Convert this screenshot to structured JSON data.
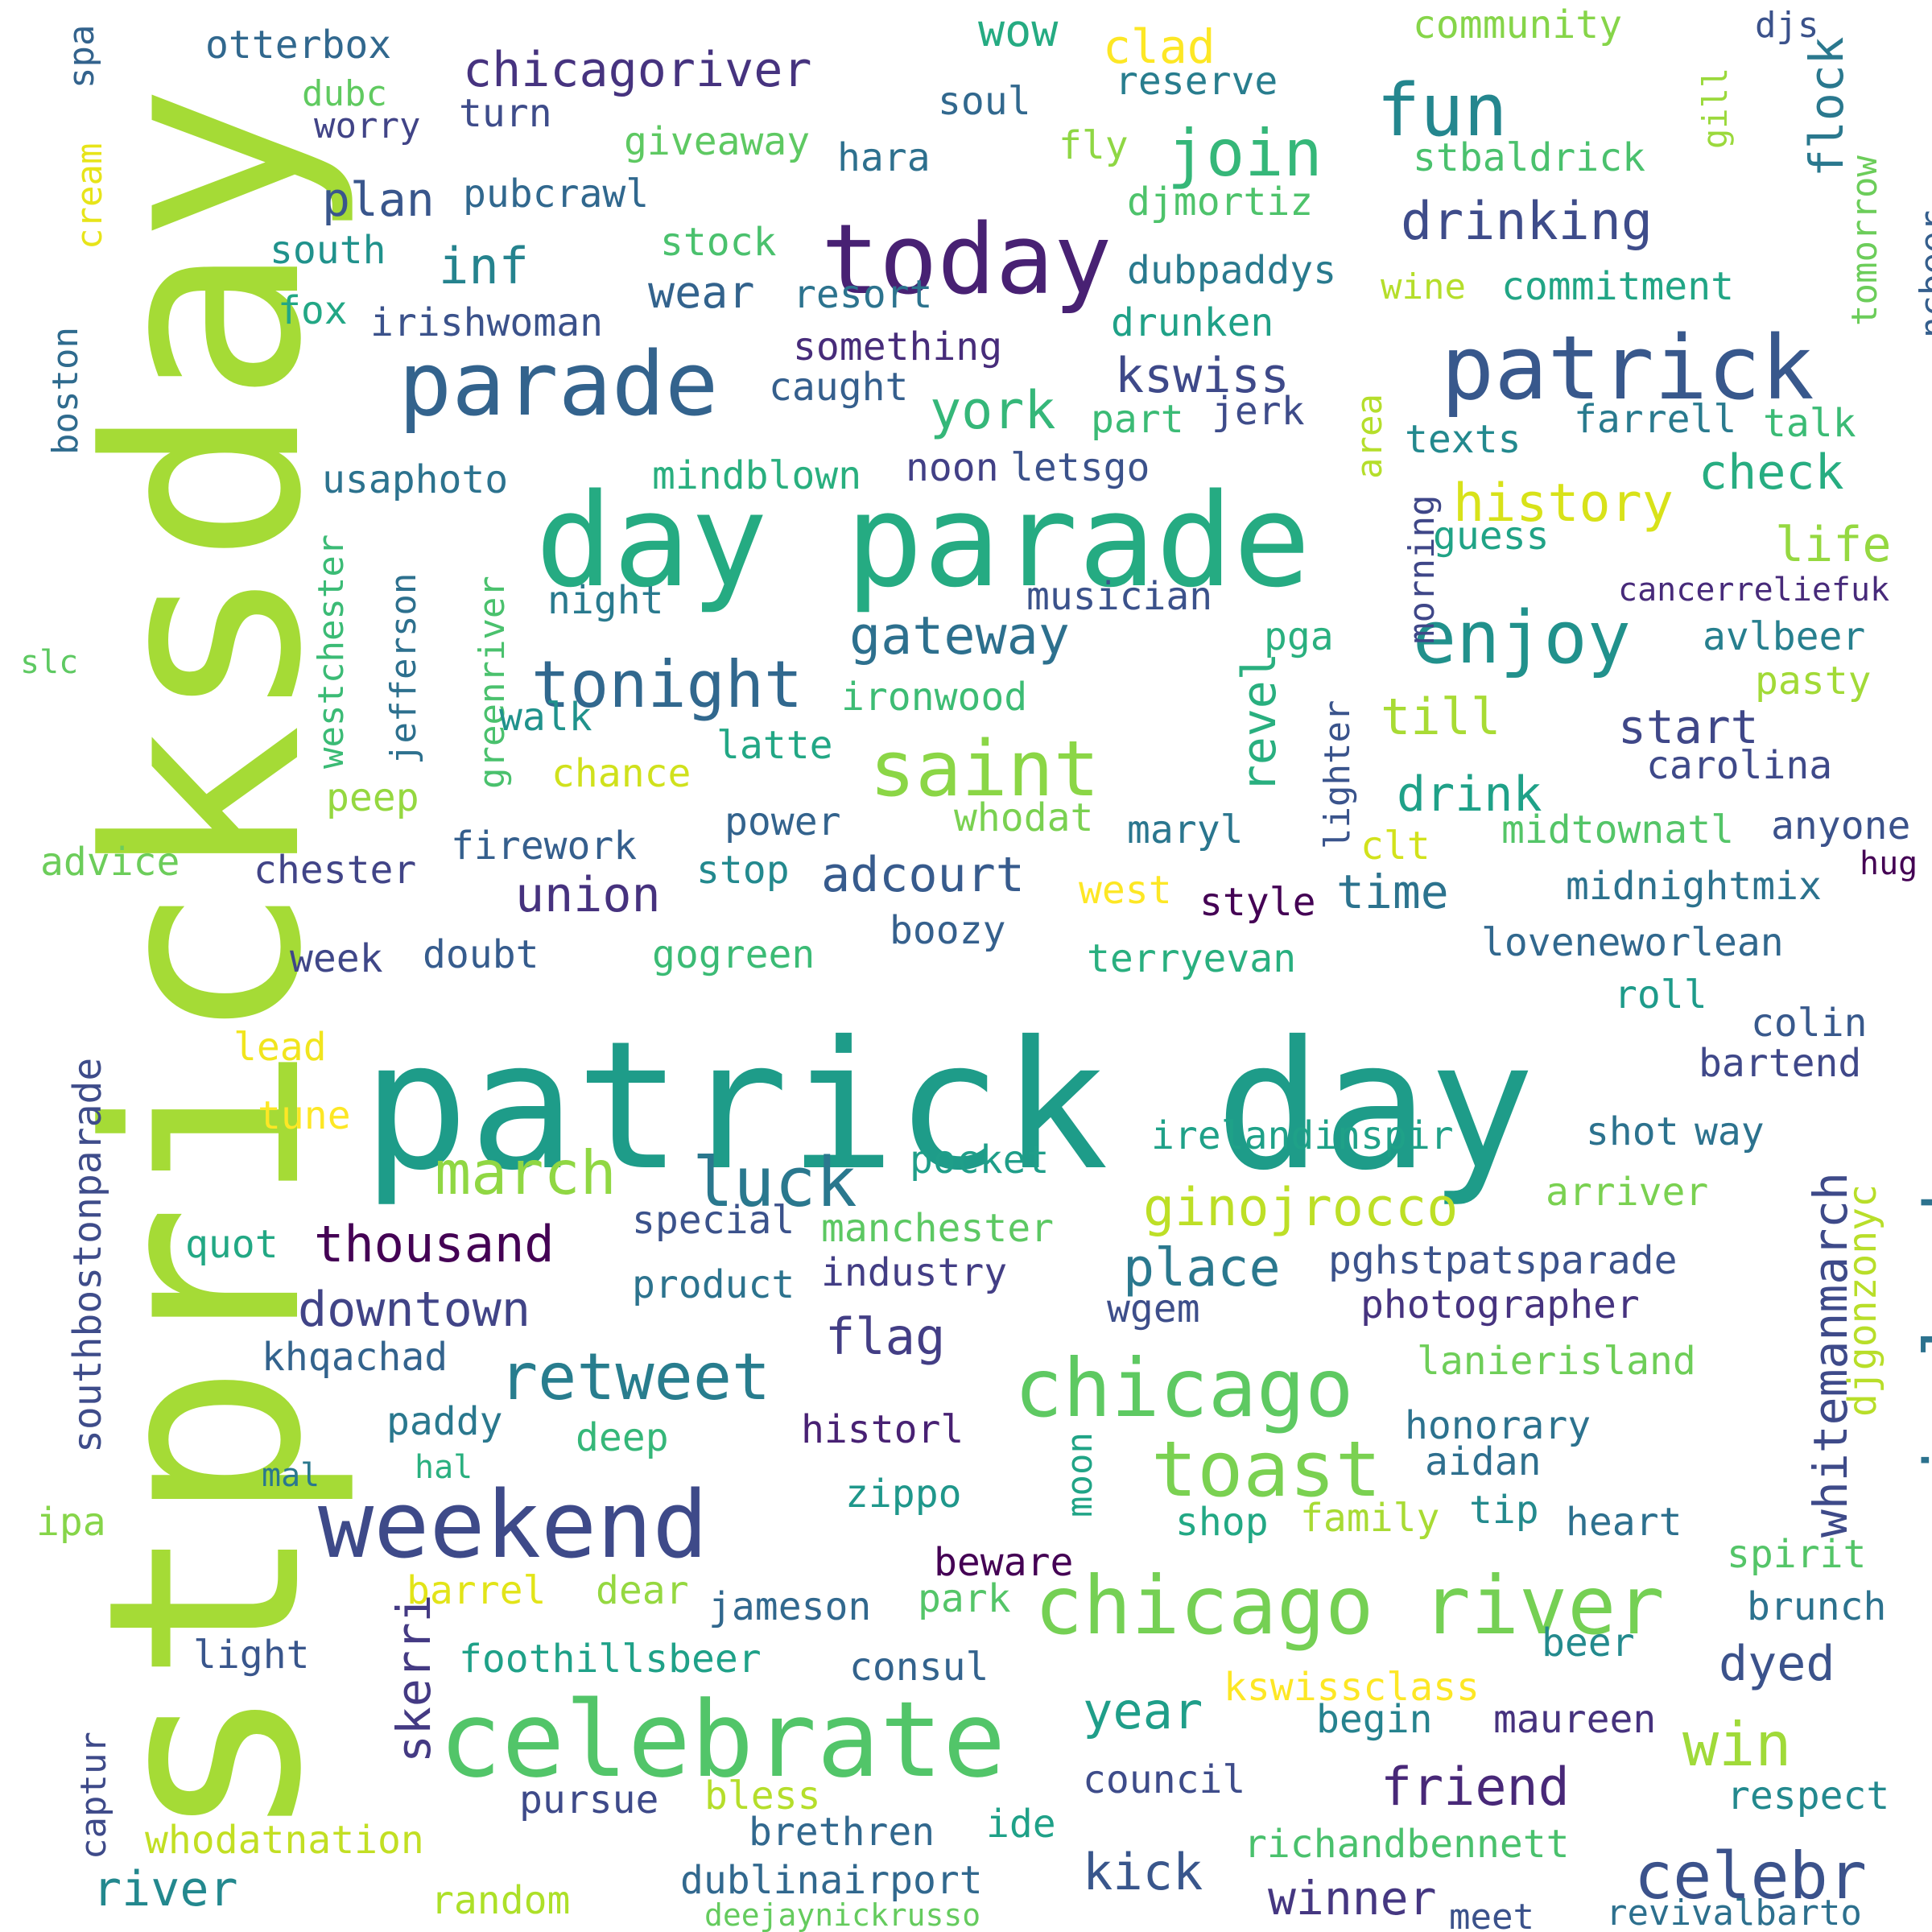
{
  "words": [
    {
      "text": "stpricksday",
      "color": "#a5db36"
    },
    {
      "text": "patrick day",
      "color": "#1e9c89"
    },
    {
      "text": "day parade",
      "color": "#25ab82"
    },
    {
      "text": "today",
      "color": "#482173"
    },
    {
      "text": "patrick",
      "color": "#38588c"
    },
    {
      "text": "parade",
      "color": "#33638d"
    },
    {
      "text": "celebrate",
      "color": "#52c569"
    },
    {
      "text": "weekend",
      "color": "#3e4a89"
    },
    {
      "text": "chicago river",
      "color": "#75d054"
    },
    {
      "text": "chicago",
      "color": "#5ec962"
    },
    {
      "text": "saint",
      "color": "#8bd646"
    },
    {
      "text": "toast",
      "color": "#7ad151"
    },
    {
      "text": "fun",
      "color": "#24868e"
    },
    {
      "text": "enjoy",
      "color": "#21918c"
    },
    {
      "text": "tonight",
      "color": "#31688e"
    },
    {
      "text": "join",
      "color": "#35b779"
    },
    {
      "text": "ireland",
      "color": "#2c728e"
    },
    {
      "text": "luck",
      "color": "#2a788e"
    },
    {
      "text": "march",
      "color": "#90d743"
    },
    {
      "text": "retweet",
      "color": "#287d8e"
    },
    {
      "text": "celebr",
      "color": "#3b528b"
    },
    {
      "text": "chicagoriver",
      "color": "#46337f"
    },
    {
      "text": "drinking",
      "color": "#3e4c8a"
    },
    {
      "text": "history",
      "color": "#d8e219"
    },
    {
      "text": "gateway",
      "color": "#2d708e"
    },
    {
      "text": "ginojrocco",
      "color": "#bddf26"
    },
    {
      "text": "thousand",
      "color": "#440154"
    },
    {
      "text": "downtown",
      "color": "#414487"
    },
    {
      "text": "place",
      "color": "#2a788e"
    },
    {
      "text": "win",
      "color": "#a0da39"
    },
    {
      "text": "friend",
      "color": "#482878"
    },
    {
      "text": "kick",
      "color": "#39568c"
    },
    {
      "text": "winner",
      "color": "#453781"
    },
    {
      "text": "river",
      "color": "#23888e"
    },
    {
      "text": "year",
      "color": "#1f9e89"
    },
    {
      "text": "dyed",
      "color": "#3b528b"
    },
    {
      "text": "union",
      "color": "#46327e"
    },
    {
      "text": "adcourt",
      "color": "#375b8d"
    },
    {
      "text": "york",
      "color": "#35b779"
    },
    {
      "text": "kswiss",
      "color": "#3e4989"
    },
    {
      "text": "check",
      "color": "#27ad81"
    },
    {
      "text": "life",
      "color": "#95d840"
    },
    {
      "text": "start",
      "color": "#3f4788"
    },
    {
      "text": "till",
      "color": "#a8db34"
    },
    {
      "text": "drink",
      "color": "#1fa188"
    },
    {
      "text": "time",
      "color": "#2c738e"
    },
    {
      "text": "flag",
      "color": "#433e85"
    },
    {
      "text": "plan",
      "color": "#39568c"
    },
    {
      "text": "inf",
      "color": "#25838e"
    },
    {
      "text": "wear",
      "color": "#33638d"
    },
    {
      "text": "flock",
      "color": "#2a788e"
    },
    {
      "text": "revel",
      "color": "#29af7f"
    },
    {
      "text": "skerri",
      "color": "#443a83"
    },
    {
      "text": "whitemanmarch",
      "color": "#3e4a89"
    },
    {
      "text": "clad",
      "color": "#fde725"
    },
    {
      "text": "wow",
      "color": "#25ab82"
    },
    {
      "text": "djgonzonyc",
      "color": "#b8de29"
    },
    {
      "text": "otterbox",
      "color": "#31688e"
    },
    {
      "text": "dubc",
      "color": "#60ca60"
    },
    {
      "text": "worry",
      "color": "#414487"
    },
    {
      "text": "turn",
      "color": "#3e4c8a"
    },
    {
      "text": "soul",
      "color": "#31688e"
    },
    {
      "text": "reserve",
      "color": "#287d8e"
    },
    {
      "text": "community",
      "color": "#86d549"
    },
    {
      "text": "djs",
      "color": "#3b528b"
    },
    {
      "text": "gill",
      "color": "#9bd93c"
    },
    {
      "text": "spa",
      "color": "#33638d"
    },
    {
      "text": "cream",
      "color": "#e7e419"
    },
    {
      "text": "giveaway",
      "color": "#5ec962"
    },
    {
      "text": "hara",
      "color": "#2d708e"
    },
    {
      "text": "fly",
      "color": "#8fd744"
    },
    {
      "text": "stbaldrick",
      "color": "#4ac16d"
    },
    {
      "text": "pubcrawl",
      "color": "#31688e"
    },
    {
      "text": "djmortiz",
      "color": "#4ec36b"
    },
    {
      "text": "tomorrow",
      "color": "#6ccd5a"
    },
    {
      "text": "ncbeer",
      "color": "#355f8d"
    },
    {
      "text": "south",
      "color": "#20928c"
    },
    {
      "text": "stock",
      "color": "#4ac16d"
    },
    {
      "text": "dubpaddys",
      "color": "#297a8e"
    },
    {
      "text": "wine",
      "color": "#b5de2b"
    },
    {
      "text": "commitment",
      "color": "#21a585"
    },
    {
      "text": "fox",
      "color": "#22a785"
    },
    {
      "text": "resort",
      "color": "#2c738e"
    },
    {
      "text": "irishwoman",
      "color": "#3b528b"
    },
    {
      "text": "drunken",
      "color": "#1fa187"
    },
    {
      "text": "boston",
      "color": "#2f6b8e"
    },
    {
      "text": "something",
      "color": "#472c7a"
    },
    {
      "text": "caught",
      "color": "#355f8d"
    },
    {
      "text": "farrell",
      "color": "#297a8e"
    },
    {
      "text": "talk",
      "color": "#3bbb75"
    },
    {
      "text": "part",
      "color": "#3bbb75"
    },
    {
      "text": "jerk",
      "color": "#3e4c8a"
    },
    {
      "text": "texts",
      "color": "#23898e"
    },
    {
      "text": "area",
      "color": "#b5de2b"
    },
    {
      "text": "usaphoto",
      "color": "#2c728e"
    },
    {
      "text": "mindblown",
      "color": "#29af7f"
    },
    {
      "text": "noon",
      "color": "#424086"
    },
    {
      "text": "letsgo",
      "color": "#3b528b"
    },
    {
      "text": "morning",
      "color": "#3f4788"
    },
    {
      "text": "westchester",
      "color": "#3bbb75"
    },
    {
      "text": "jefferson",
      "color": "#2d708e"
    },
    {
      "text": "greenriver",
      "color": "#4ac16d"
    },
    {
      "text": "guess",
      "color": "#20a386"
    },
    {
      "text": "night",
      "color": "#297a8e"
    },
    {
      "text": "musician",
      "color": "#3b528b"
    },
    {
      "text": "cancerreliefuk",
      "color": "#472a7a"
    },
    {
      "text": "pga",
      "color": "#2ab07f"
    },
    {
      "text": "avlbeer",
      "color": "#277f8e"
    },
    {
      "text": "slc",
      "color": "#5ec962"
    },
    {
      "text": "ironwood",
      "color": "#3dbc74"
    },
    {
      "text": "lighter",
      "color": "#3a548c"
    },
    {
      "text": "pasty",
      "color": "#a2da37"
    },
    {
      "text": "walk",
      "color": "#20928c"
    },
    {
      "text": "latte",
      "color": "#22a785"
    },
    {
      "text": "chance",
      "color": "#d0e11c"
    },
    {
      "text": "carolina",
      "color": "#3e4989"
    },
    {
      "text": "peep",
      "color": "#95d840"
    },
    {
      "text": "power",
      "color": "#33638d"
    },
    {
      "text": "whodat",
      "color": "#7ad151"
    },
    {
      "text": "maryl",
      "color": "#2a768e"
    },
    {
      "text": "midtownatl",
      "color": "#54c568"
    },
    {
      "text": "anyone",
      "color": "#3b528b"
    },
    {
      "text": "clt",
      "color": "#d2e21b"
    },
    {
      "text": "hug",
      "color": "#440154"
    },
    {
      "text": "advice",
      "color": "#6ccd5a"
    },
    {
      "text": "chester",
      "color": "#414487"
    },
    {
      "text": "firework",
      "color": "#355f8d"
    },
    {
      "text": "stop",
      "color": "#23898e"
    },
    {
      "text": "west",
      "color": "#fde725"
    },
    {
      "text": "style",
      "color": "#440154"
    },
    {
      "text": "midnightmix",
      "color": "#2c728e"
    },
    {
      "text": "boozy",
      "color": "#35608d"
    },
    {
      "text": "week",
      "color": "#3f4788"
    },
    {
      "text": "doubt",
      "color": "#365c8d"
    },
    {
      "text": "gogreen",
      "color": "#3bbb75"
    },
    {
      "text": "terryevan",
      "color": "#29af7f"
    },
    {
      "text": "loveneworlean",
      "color": "#31688e"
    },
    {
      "text": "roll",
      "color": "#1e9b8a"
    },
    {
      "text": "lead",
      "color": "#f1e51d"
    },
    {
      "text": "colin",
      "color": "#38598c"
    },
    {
      "text": "bartend",
      "color": "#3f4889"
    },
    {
      "text": "southbostonparade",
      "color": "#3e4c8a"
    },
    {
      "text": "tune",
      "color": "#fde725"
    },
    {
      "text": "irelandinspir",
      "color": "#1fa188"
    },
    {
      "text": "shot",
      "color": "#2c728e"
    },
    {
      "text": "way",
      "color": "#2c728e"
    },
    {
      "text": "pocket",
      "color": "#1f9e89"
    },
    {
      "text": "arriver",
      "color": "#7ad151"
    },
    {
      "text": "quot",
      "color": "#22a884"
    },
    {
      "text": "special",
      "color": "#3b528b"
    },
    {
      "text": "manchester",
      "color": "#5cc863"
    },
    {
      "text": "pghstpatsparade",
      "color": "#3b528b"
    },
    {
      "text": "industry",
      "color": "#433e85"
    },
    {
      "text": "product",
      "color": "#2c738e"
    },
    {
      "text": "wgem",
      "color": "#3d4e8a"
    },
    {
      "text": "photographer",
      "color": "#46337f"
    },
    {
      "text": "khqachad",
      "color": "#33638d"
    },
    {
      "text": "lanierisland",
      "color": "#6ece58"
    },
    {
      "text": "paddy",
      "color": "#2a788e"
    },
    {
      "text": "historl",
      "color": "#482173"
    },
    {
      "text": "honorary",
      "color": "#2c728e"
    },
    {
      "text": "deep",
      "color": "#35b779"
    },
    {
      "text": "moon",
      "color": "#20a486"
    },
    {
      "text": "mal",
      "color": "#2a788e"
    },
    {
      "text": "hal",
      "color": "#2ab07f"
    },
    {
      "text": "aidan",
      "color": "#2e6f8e"
    },
    {
      "text": "ipa",
      "color": "#86d549"
    },
    {
      "text": "zippo",
      "color": "#1f978b"
    },
    {
      "text": "shop",
      "color": "#22a884"
    },
    {
      "text": "family",
      "color": "#a8db34"
    },
    {
      "text": "tip",
      "color": "#238a8d"
    },
    {
      "text": "heart",
      "color": "#2d708e"
    },
    {
      "text": "spirit",
      "color": "#54c568"
    },
    {
      "text": "beware",
      "color": "#440154"
    },
    {
      "text": "barrel",
      "color": "#e2e418"
    },
    {
      "text": "dear",
      "color": "#95d840"
    },
    {
      "text": "jameson",
      "color": "#31688e"
    },
    {
      "text": "park",
      "color": "#54c568"
    },
    {
      "text": "brunch",
      "color": "#2c728e"
    },
    {
      "text": "light",
      "color": "#39568c"
    },
    {
      "text": "foothillsbeer",
      "color": "#1fa188"
    },
    {
      "text": "consul",
      "color": "#33638d"
    },
    {
      "text": "beer",
      "color": "#238a8d"
    },
    {
      "text": "kswissclass",
      "color": "#fde725"
    },
    {
      "text": "captur",
      "color": "#3e4a89"
    },
    {
      "text": "begin",
      "color": "#26828e"
    },
    {
      "text": "maureen",
      "color": "#46327e"
    },
    {
      "text": "council",
      "color": "#3e4c8a"
    },
    {
      "text": "pursue",
      "color": "#3e4a89"
    },
    {
      "text": "bless",
      "color": "#b5de2b"
    },
    {
      "text": "respect",
      "color": "#23898e"
    },
    {
      "text": "whodatnation",
      "color": "#c2df23"
    },
    {
      "text": "brethren",
      "color": "#31688e"
    },
    {
      "text": "ide",
      "color": "#1fa188"
    },
    {
      "text": "richandbennett",
      "color": "#4ac16d"
    },
    {
      "text": "random",
      "color": "#ade028"
    },
    {
      "text": "dublinairport",
      "color": "#31688e"
    },
    {
      "text": "deejaynickrusso",
      "color": "#65cb5e"
    },
    {
      "text": "meet",
      "color": "#3b528b"
    },
    {
      "text": "revivalbarto",
      "color": "#2d708e"
    }
  ]
}
